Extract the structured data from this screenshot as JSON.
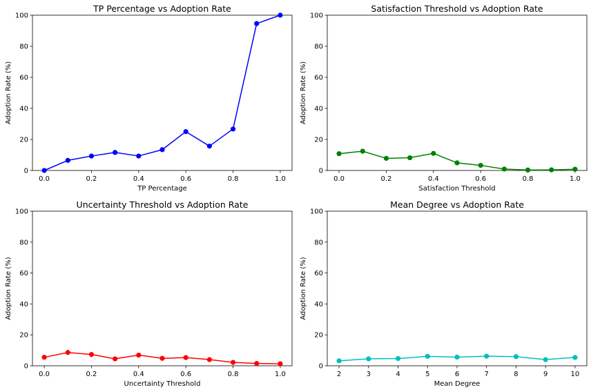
{
  "chart_data": [
    {
      "type": "line",
      "title": "TP Percentage vs Adoption Rate",
      "xlabel": "TP Percentage",
      "ylabel": "Adoption Rate (%)",
      "xlim": [
        -0.05,
        1.05
      ],
      "ylim": [
        0,
        100
      ],
      "xticks": [
        "0.0",
        "0.2",
        "0.4",
        "0.6",
        "0.8",
        "1.0"
      ],
      "xtick_values": [
        0.0,
        0.2,
        0.4,
        0.6,
        0.8,
        1.0
      ],
      "yticks": [
        "0",
        "20",
        "40",
        "60",
        "80",
        "100"
      ],
      "ytick_values": [
        0,
        20,
        40,
        60,
        80,
        100
      ],
      "grid": false,
      "color": "#0000ff",
      "series": [
        {
          "x": [
            0.0,
            0.1,
            0.2,
            0.3,
            0.4,
            0.5,
            0.6,
            0.7,
            0.8,
            0.9,
            1.0
          ],
          "values": [
            0.0,
            6.5,
            9.3,
            11.6,
            9.3,
            13.4,
            25.0,
            15.7,
            26.7,
            94.6,
            100.0
          ]
        }
      ]
    },
    {
      "type": "line",
      "title": "Satisfaction Threshold vs Adoption Rate",
      "xlabel": "Satisfaction Threshold",
      "ylabel": "Adoption Rate (%)",
      "xlim": [
        -0.05,
        1.05
      ],
      "ylim": [
        0,
        100
      ],
      "xticks": [
        "0.0",
        "0.2",
        "0.4",
        "0.6",
        "0.8",
        "1.0"
      ],
      "xtick_values": [
        0.0,
        0.2,
        0.4,
        0.6,
        0.8,
        1.0
      ],
      "yticks": [
        "0",
        "20",
        "40",
        "60",
        "80",
        "100"
      ],
      "ytick_values": [
        0,
        20,
        40,
        60,
        80,
        100
      ],
      "grid": false,
      "color": "#008000",
      "series": [
        {
          "x": [
            0.0,
            0.1,
            0.2,
            0.3,
            0.4,
            0.5,
            0.6,
            0.7,
            0.8,
            0.9,
            1.0
          ],
          "values": [
            10.8,
            12.4,
            7.8,
            8.2,
            11.0,
            4.9,
            3.3,
            0.9,
            0.3,
            0.4,
            0.8
          ]
        }
      ]
    },
    {
      "type": "line",
      "title": "Uncertainty Threshold vs Adoption Rate",
      "xlabel": "Uncertainty Threshold",
      "ylabel": "Adoption Rate (%)",
      "xlim": [
        -0.05,
        1.05
      ],
      "ylim": [
        0,
        100
      ],
      "xticks": [
        "0.0",
        "0.2",
        "0.4",
        "0.6",
        "0.8",
        "1.0"
      ],
      "xtick_values": [
        0.0,
        0.2,
        0.4,
        0.6,
        0.8,
        1.0
      ],
      "yticks": [
        "0",
        "20",
        "40",
        "60",
        "80",
        "100"
      ],
      "ytick_values": [
        0,
        20,
        40,
        60,
        80,
        100
      ],
      "grid": false,
      "color": "#ff0000",
      "series": [
        {
          "x": [
            0.0,
            0.1,
            0.2,
            0.3,
            0.4,
            0.5,
            0.6,
            0.7,
            0.8,
            0.9,
            1.0
          ],
          "values": [
            5.5,
            8.6,
            7.3,
            4.5,
            6.9,
            4.8,
            5.3,
            4.0,
            2.2,
            1.5,
            1.3
          ]
        }
      ]
    },
    {
      "type": "line",
      "title": "Mean Degree vs Adoption Rate",
      "xlabel": "Mean Degree",
      "ylabel": "Adoption Rate (%)",
      "xlim": [
        1.6,
        10.4
      ],
      "ylim": [
        0,
        100
      ],
      "xticks": [
        "2",
        "3",
        "4",
        "5",
        "6",
        "7",
        "8",
        "9",
        "10"
      ],
      "xtick_values": [
        2,
        3,
        4,
        5,
        6,
        7,
        8,
        9,
        10
      ],
      "yticks": [
        "0",
        "20",
        "40",
        "60",
        "80",
        "100"
      ],
      "ytick_values": [
        0,
        20,
        40,
        60,
        80,
        100
      ],
      "grid": false,
      "color": "#00bfbf",
      "series": [
        {
          "x": [
            2,
            3,
            4,
            5,
            6,
            7,
            8,
            9,
            10
          ],
          "values": [
            3.2,
            4.5,
            4.7,
            6.1,
            5.6,
            6.2,
            5.9,
            4.0,
            5.4
          ]
        }
      ]
    }
  ]
}
